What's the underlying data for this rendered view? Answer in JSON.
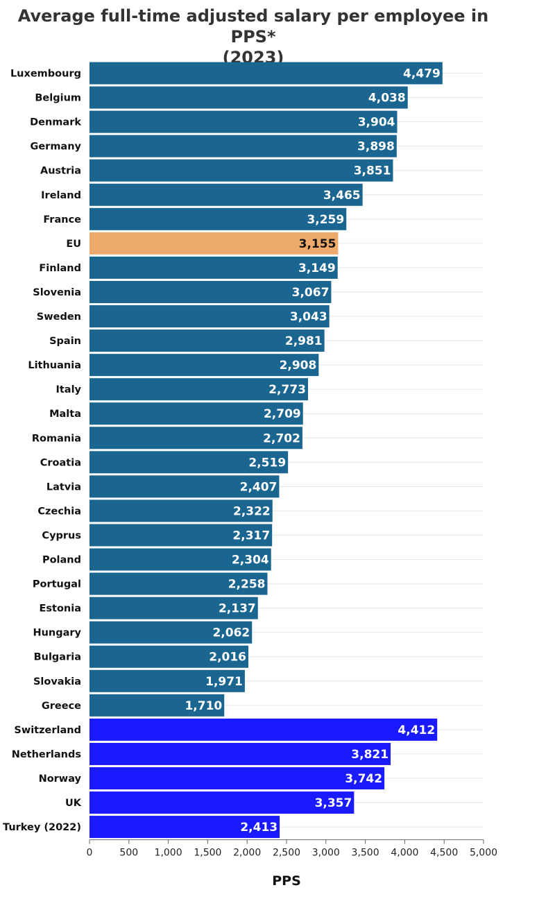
{
  "chart_data": {
    "type": "bar",
    "orientation": "horizontal",
    "title_line1": "Average full-time adjusted salary per employee in PPS*",
    "title_line2": "(2023)",
    "xlabel": "PPS",
    "xlim": [
      0,
      5000
    ],
    "xticks": [
      0,
      500,
      1000,
      1500,
      2000,
      2500,
      3000,
      3500,
      4000,
      4500,
      5000
    ],
    "xtick_labels": [
      "0",
      "500",
      "1,000",
      "1,500",
      "2,000",
      "2,500",
      "3,000",
      "3,500",
      "4,000",
      "4,500",
      "5,000"
    ],
    "grid": true,
    "colors": {
      "eu_member": "#1a6690",
      "eu_average": "#eeaa6a",
      "non_eu": "#1a1aff"
    },
    "bars": [
      {
        "category": "Luxembourg",
        "value": 4479,
        "label": "4,479",
        "group": "eu_member"
      },
      {
        "category": "Belgium",
        "value": 4038,
        "label": "4,038",
        "group": "eu_member"
      },
      {
        "category": "Denmark",
        "value": 3904,
        "label": "3,904",
        "group": "eu_member"
      },
      {
        "category": "Germany",
        "value": 3898,
        "label": "3,898",
        "group": "eu_member"
      },
      {
        "category": "Austria",
        "value": 3851,
        "label": "3,851",
        "group": "eu_member"
      },
      {
        "category": "Ireland",
        "value": 3465,
        "label": "3,465",
        "group": "eu_member"
      },
      {
        "category": "France",
        "value": 3259,
        "label": "3,259",
        "group": "eu_member"
      },
      {
        "category": "EU",
        "value": 3155,
        "label": "3,155",
        "group": "eu_average"
      },
      {
        "category": "Finland",
        "value": 3149,
        "label": "3,149",
        "group": "eu_member"
      },
      {
        "category": "Slovenia",
        "value": 3067,
        "label": "3,067",
        "group": "eu_member"
      },
      {
        "category": "Sweden",
        "value": 3043,
        "label": "3,043",
        "group": "eu_member"
      },
      {
        "category": "Spain",
        "value": 2981,
        "label": "2,981",
        "group": "eu_member"
      },
      {
        "category": "Lithuania",
        "value": 2908,
        "label": "2,908",
        "group": "eu_member"
      },
      {
        "category": "Italy",
        "value": 2773,
        "label": "2,773",
        "group": "eu_member"
      },
      {
        "category": "Malta",
        "value": 2709,
        "label": "2,709",
        "group": "eu_member"
      },
      {
        "category": "Romania",
        "value": 2702,
        "label": "2,702",
        "group": "eu_member"
      },
      {
        "category": "Croatia",
        "value": 2519,
        "label": "2,519",
        "group": "eu_member"
      },
      {
        "category": "Latvia",
        "value": 2407,
        "label": "2,407",
        "group": "eu_member"
      },
      {
        "category": "Czechia",
        "value": 2322,
        "label": "2,322",
        "group": "eu_member"
      },
      {
        "category": "Cyprus",
        "value": 2317,
        "label": "2,317",
        "group": "eu_member"
      },
      {
        "category": "Poland",
        "value": 2304,
        "label": "2,304",
        "group": "eu_member"
      },
      {
        "category": "Portugal",
        "value": 2258,
        "label": "2,258",
        "group": "eu_member"
      },
      {
        "category": "Estonia",
        "value": 2137,
        "label": "2,137",
        "group": "eu_member"
      },
      {
        "category": "Hungary",
        "value": 2062,
        "label": "2,062",
        "group": "eu_member"
      },
      {
        "category": "Bulgaria",
        "value": 2016,
        "label": "2,016",
        "group": "eu_member"
      },
      {
        "category": "Slovakia",
        "value": 1971,
        "label": "1,971",
        "group": "eu_member"
      },
      {
        "category": "Greece",
        "value": 1710,
        "label": "1,710",
        "group": "eu_member"
      },
      {
        "category": "Switzerland",
        "value": 4412,
        "label": "4,412",
        "group": "non_eu"
      },
      {
        "category": "Netherlands",
        "value": 3821,
        "label": "3,821",
        "group": "non_eu"
      },
      {
        "category": "Norway",
        "value": 3742,
        "label": "3,742",
        "group": "non_eu"
      },
      {
        "category": "UK",
        "value": 3357,
        "label": "3,357",
        "group": "non_eu"
      },
      {
        "category": "Turkey (2022)",
        "value": 2413,
        "label": "2,413",
        "group": "non_eu"
      }
    ]
  }
}
